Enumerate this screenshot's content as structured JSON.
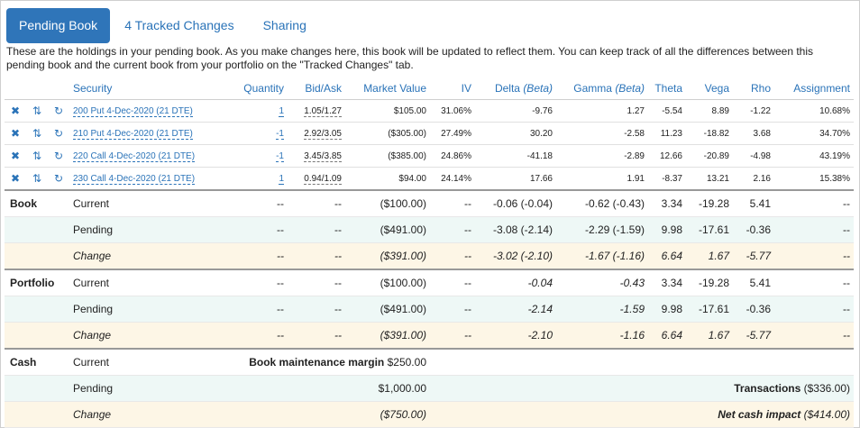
{
  "tabs": [
    {
      "label": "Pending Book",
      "active": true
    },
    {
      "label": "4 Tracked Changes",
      "active": false
    },
    {
      "label": "Sharing",
      "active": false
    }
  ],
  "intro": "These are the holdings in your pending book. As you make changes here, this book will be updated to reflect them. You can keep track of all the differences between this pending book and the current book from your portfolio on the \"Tracked Changes\" tab.",
  "columns": {
    "security": "Security",
    "quantity": "Quantity",
    "bidask": "Bid/Ask",
    "market_value": "Market Value",
    "iv": "IV",
    "delta": "Delta",
    "delta_sub": "(Beta)",
    "gamma": "Gamma",
    "gamma_sub": "(Beta)",
    "theta": "Theta",
    "vega": "Vega",
    "rho": "Rho",
    "assignment": "Assignment"
  },
  "icons": {
    "remove": "close-icon",
    "swap": "swap-icon",
    "refresh": "refresh-icon"
  },
  "holdings": [
    {
      "security": "200 Put 4-Dec-2020 (21 DTE)",
      "quantity": "1",
      "bidask": "1.05/1.27",
      "market_value": "$105.00",
      "iv": "31.06%",
      "delta": "-9.76",
      "gamma": "1.27",
      "theta": "-5.54",
      "vega": "8.89",
      "rho": "-1.22",
      "assignment": "10.68%"
    },
    {
      "security": "210 Put 4-Dec-2020 (21 DTE)",
      "quantity": "-1",
      "bidask": "2.92/3.05",
      "market_value": "($305.00)",
      "iv": "27.49%",
      "delta": "30.20",
      "gamma": "-2.58",
      "theta": "11.23",
      "vega": "-18.82",
      "rho": "3.68",
      "assignment": "34.70%"
    },
    {
      "security": "220 Call 4-Dec-2020 (21 DTE)",
      "quantity": "-1",
      "bidask": "3.45/3.85",
      "market_value": "($385.00)",
      "iv": "24.86%",
      "delta": "-41.18",
      "gamma": "-2.89",
      "theta": "12.66",
      "vega": "-20.89",
      "rho": "-4.98",
      "assignment": "43.19%"
    },
    {
      "security": "230 Call 4-Dec-2020 (21 DTE)",
      "quantity": "1",
      "bidask": "0.94/1.09",
      "market_value": "$94.00",
      "iv": "24.14%",
      "delta": "17.66",
      "gamma": "1.91",
      "theta": "-8.37",
      "vega": "13.21",
      "rho": "2.16",
      "assignment": "15.38%"
    }
  ],
  "book": {
    "label": "Book",
    "current": {
      "label": "Current",
      "quantity": "--",
      "bidask": "--",
      "market_value": "($100.00)",
      "iv": "--",
      "delta": "-0.06 (-0.04)",
      "gamma": "-0.62 (-0.43)",
      "theta": "3.34",
      "vega": "-19.28",
      "rho": "5.41",
      "assignment": "--"
    },
    "pending": {
      "label": "Pending",
      "quantity": "--",
      "bidask": "--",
      "market_value": "($491.00)",
      "iv": "--",
      "delta": "-3.08 (-2.14)",
      "gamma": "-2.29 (-1.59)",
      "theta": "9.98",
      "vega": "-17.61",
      "rho": "-0.36",
      "assignment": "--"
    },
    "change": {
      "label": "Change",
      "quantity": "--",
      "bidask": "--",
      "market_value": "($391.00)",
      "iv": "--",
      "delta": "-3.02 (-2.10)",
      "gamma": "-1.67 (-1.16)",
      "theta": "6.64",
      "vega": "1.67",
      "rho": "-5.77",
      "assignment": "--"
    }
  },
  "portfolio": {
    "label": "Portfolio",
    "current": {
      "label": "Current",
      "quantity": "--",
      "bidask": "--",
      "market_value": "($100.00)",
      "iv": "--",
      "delta": "-0.04",
      "gamma": "-0.43",
      "theta": "3.34",
      "vega": "-19.28",
      "rho": "5.41",
      "assignment": "--"
    },
    "pending": {
      "label": "Pending",
      "quantity": "--",
      "bidask": "--",
      "market_value": "($491.00)",
      "iv": "--",
      "delta": "-2.14",
      "gamma": "-1.59",
      "theta": "9.98",
      "vega": "-17.61",
      "rho": "-0.36",
      "assignment": "--"
    },
    "change": {
      "label": "Change",
      "quantity": "--",
      "bidask": "--",
      "market_value": "($391.00)",
      "iv": "--",
      "delta": "-2.10",
      "gamma": "-1.16",
      "theta": "6.64",
      "vega": "1.67",
      "rho": "-5.77",
      "assignment": "--"
    }
  },
  "cash": {
    "label": "Cash",
    "current": {
      "label": "Current",
      "margin_label": "Book maintenance margin",
      "value": "$250.00"
    },
    "pending": {
      "label": "Pending",
      "value": "$1,000.00",
      "transactions_label": "Transactions",
      "transactions_value": "($336.00)"
    },
    "change": {
      "label": "Change",
      "value": "($750.00)",
      "net_label": "Net cash impact",
      "net_value": "($414.00)"
    }
  }
}
